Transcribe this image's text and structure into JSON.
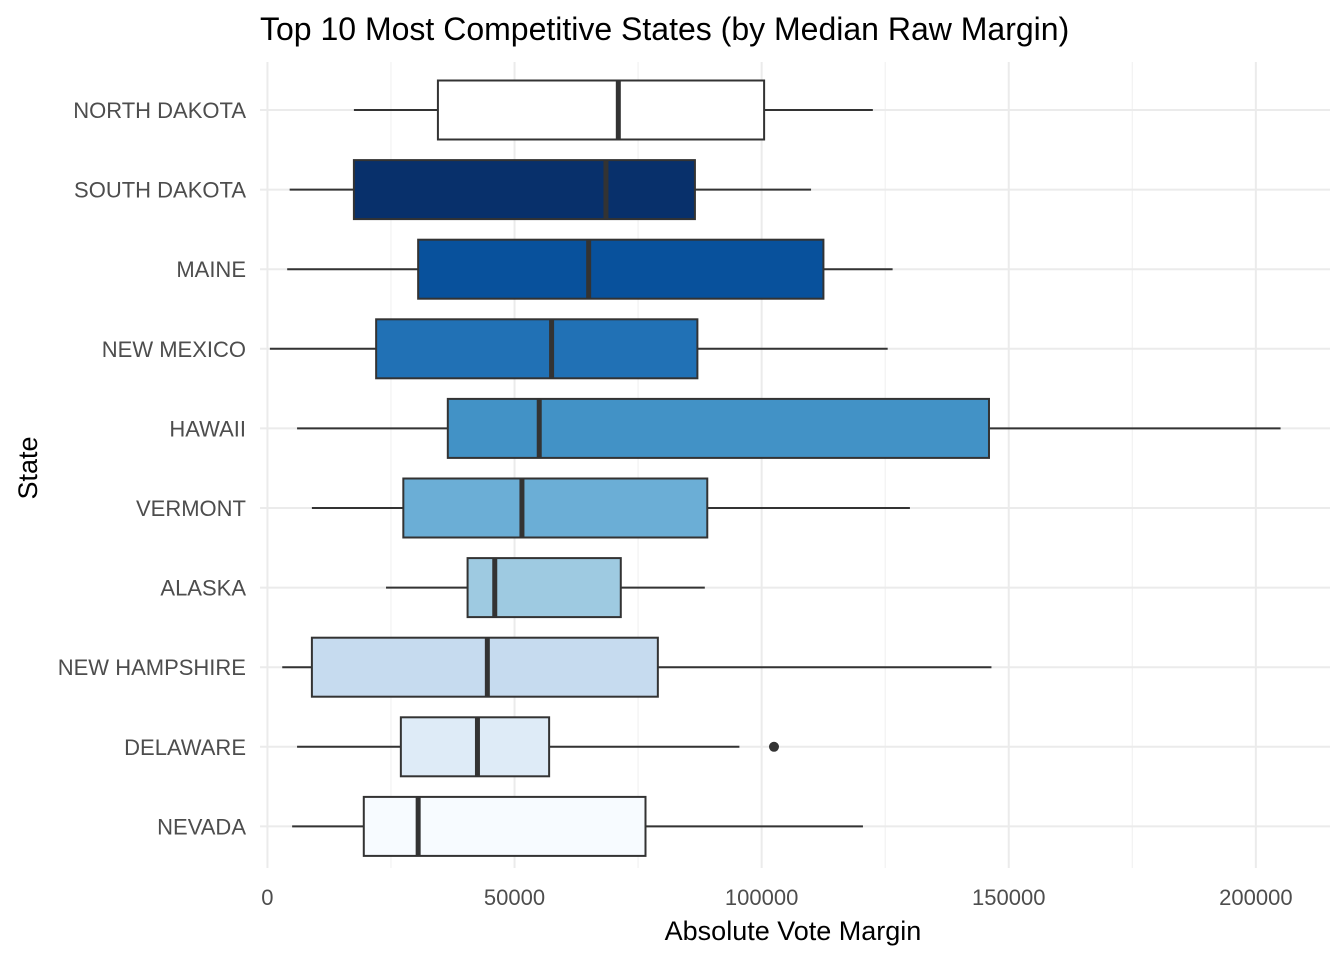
{
  "chart_data": {
    "type": "boxplot",
    "orientation": "horizontal",
    "title": "Top 10 Most Competitive States (by Median Raw Margin)",
    "xlabel": "Absolute Vote Margin",
    "ylabel": "State",
    "xlim": [
      -1500,
      215000
    ],
    "xticks": [
      0,
      50000,
      100000,
      150000,
      200000
    ],
    "xtick_labels": [
      "0",
      "50000",
      "100000",
      "150000",
      "200000"
    ],
    "xminor": [
      25000,
      75000,
      125000,
      175000
    ],
    "grid": true,
    "legend": "none",
    "states": [
      {
        "name": "NORTH DAKOTA",
        "whisker_low": 17500,
        "q1": 34500,
        "median": 71000,
        "q3": 100500,
        "whisker_high": 122500,
        "outliers": [],
        "fill": "#ffffff"
      },
      {
        "name": "SOUTH DAKOTA",
        "whisker_low": 4500,
        "q1": 17500,
        "median": 68500,
        "q3": 86500,
        "whisker_high": 110000,
        "outliers": [],
        "fill": "#08306b"
      },
      {
        "name": "MAINE",
        "whisker_low": 4000,
        "q1": 30500,
        "median": 65000,
        "q3": 112500,
        "whisker_high": 126500,
        "outliers": [],
        "fill": "#08519c"
      },
      {
        "name": "NEW MEXICO",
        "whisker_low": 500,
        "q1": 22000,
        "median": 57500,
        "q3": 87000,
        "whisker_high": 125500,
        "outliers": [],
        "fill": "#2171b5"
      },
      {
        "name": "HAWAII",
        "whisker_low": 6000,
        "q1": 36500,
        "median": 55000,
        "q3": 146000,
        "whisker_high": 205000,
        "outliers": [],
        "fill": "#4292c6"
      },
      {
        "name": "VERMONT",
        "whisker_low": 9000,
        "q1": 27500,
        "median": 51500,
        "q3": 89000,
        "whisker_high": 130000,
        "outliers": [],
        "fill": "#6baed6"
      },
      {
        "name": "ALASKA",
        "whisker_low": 24000,
        "q1": 40500,
        "median": 46000,
        "q3": 71500,
        "whisker_high": 88500,
        "outliers": [],
        "fill": "#9ecae1"
      },
      {
        "name": "NEW HAMPSHIRE",
        "whisker_low": 3000,
        "q1": 9000,
        "median": 44500,
        "q3": 79000,
        "whisker_high": 146500,
        "outliers": [],
        "fill": "#c6dbef"
      },
      {
        "name": "DELAWARE",
        "whisker_low": 6000,
        "q1": 27000,
        "median": 42500,
        "q3": 57000,
        "whisker_high": 95500,
        "outliers": [
          102500
        ],
        "fill": "#deebf7"
      },
      {
        "name": "NEVADA",
        "whisker_low": 5000,
        "q1": 19500,
        "median": 30500,
        "q3": 76500,
        "whisker_high": 120500,
        "outliers": [],
        "fill": "#f7fbff"
      }
    ]
  }
}
